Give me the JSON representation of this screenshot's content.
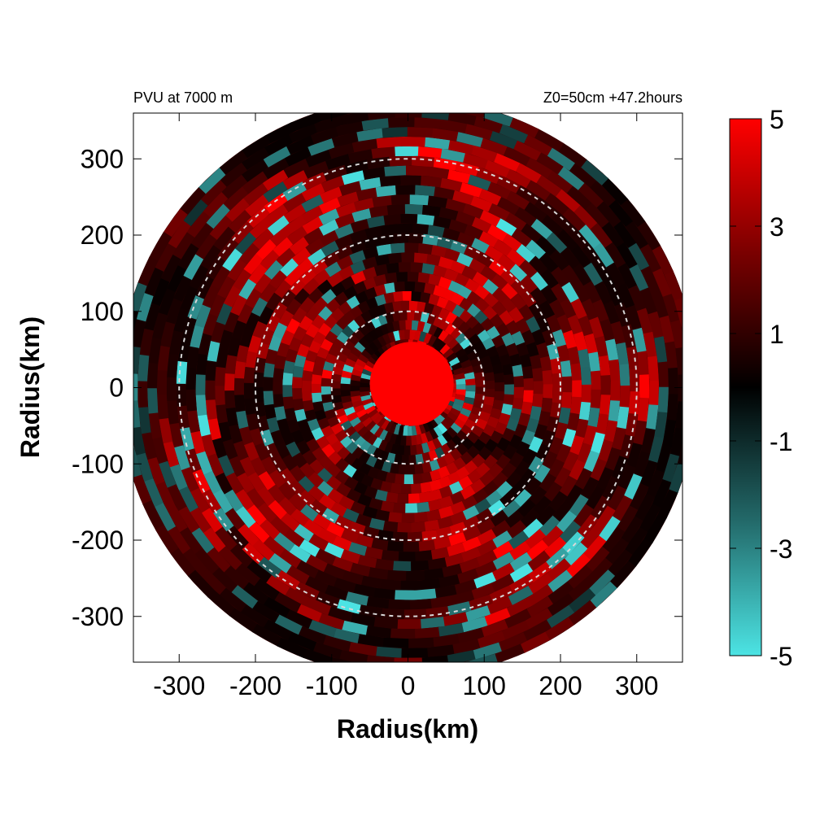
{
  "chart_data": {
    "type": "heatmap",
    "title_left": "PVU at  7000 m",
    "title_right": "Z0=50cm  +47.2hours",
    "xlabel": "Radius(km)",
    "ylabel": "Radius(km)",
    "xlim": [
      -360,
      360
    ],
    "ylim": [
      -360,
      360
    ],
    "x_ticks": [
      -300,
      -200,
      -100,
      0,
      100,
      200,
      300
    ],
    "x_tick_labels": [
      "-300",
      "-200",
      "-100",
      "0",
      "100",
      "200",
      "300"
    ],
    "y_ticks": [
      300,
      200,
      100,
      0,
      -100,
      -200,
      -300
    ],
    "y_tick_labels": [
      "300",
      "200",
      "100",
      "0",
      "-100",
      "-200",
      "-300"
    ],
    "domain_radius_km": 380,
    "reference_circles_km": [
      100,
      200,
      300
    ],
    "core": {
      "x_km": 5,
      "y_km": 5,
      "radius_km": 55,
      "value": 5
    },
    "colorbar": {
      "min": -5,
      "max": 5,
      "ticks": [
        5,
        3,
        1,
        -1,
        -3,
        -5
      ],
      "tick_labels": [
        "5",
        "3",
        "1",
        "-1",
        "-3",
        "-5"
      ],
      "colors": {
        "negative": "#4ce4e4",
        "zero": "#000000",
        "positive": "#ff0000"
      }
    }
  }
}
